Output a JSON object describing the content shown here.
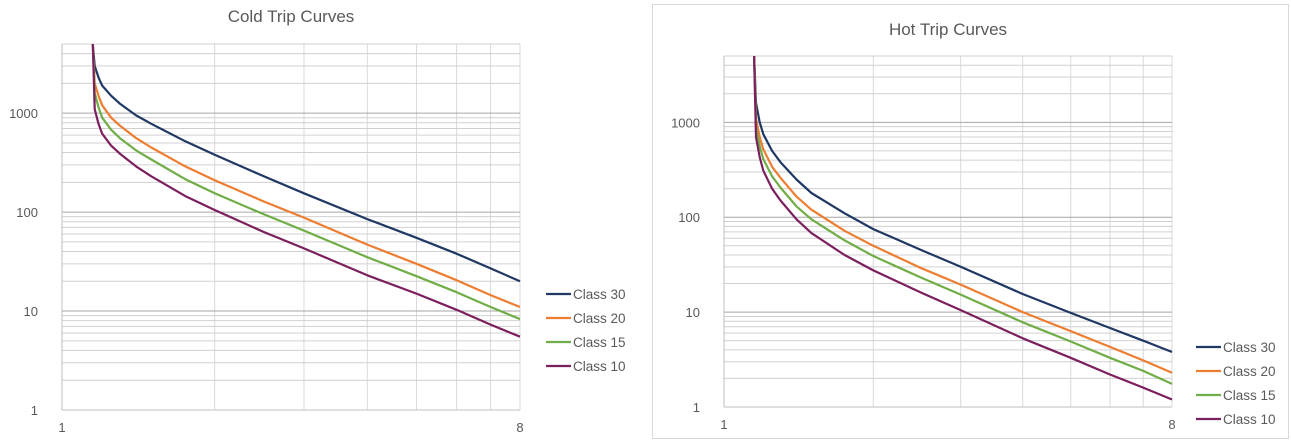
{
  "chart_data": [
    {
      "type": "line",
      "title": "Cold Trip Curves",
      "xlabel": "",
      "ylabel": "",
      "xscale": "log",
      "yscale": "log",
      "xlim": [
        1,
        8
      ],
      "ylim": [
        1,
        5000
      ],
      "x_tick_labels": [
        "1",
        "8"
      ],
      "y_tick_labels": [
        "1",
        "10",
        "100",
        "1000"
      ],
      "grid": true,
      "legend_position": "right",
      "series": [
        {
          "name": "Class 30",
          "color": "#1f3864",
          "x": [
            1.15,
            1.16,
            1.18,
            1.2,
            1.25,
            1.3,
            1.4,
            1.5,
            1.75,
            2,
            2.5,
            3,
            4,
            5,
            6,
            7,
            8
          ],
          "y": [
            5000,
            3000,
            2300,
            1900,
            1500,
            1250,
            950,
            780,
            520,
            380,
            230,
            155,
            85,
            55,
            38,
            27,
            20
          ]
        },
        {
          "name": "Class 20",
          "color": "#ed7d31",
          "x": [
            1.15,
            1.16,
            1.18,
            1.2,
            1.25,
            1.3,
            1.4,
            1.5,
            1.75,
            2,
            2.5,
            3,
            4,
            5,
            6,
            7,
            8
          ],
          "y": [
            5000,
            2000,
            1500,
            1200,
            900,
            750,
            560,
            450,
            290,
            210,
            128,
            88,
            47,
            30,
            20.5,
            14.5,
            11
          ]
        },
        {
          "name": "Class 15",
          "color": "#70ad47",
          "x": [
            1.15,
            1.16,
            1.18,
            1.2,
            1.25,
            1.3,
            1.4,
            1.5,
            1.75,
            2,
            2.5,
            3,
            4,
            5,
            6,
            7,
            8
          ],
          "y": [
            5000,
            1600,
            1150,
            900,
            680,
            560,
            420,
            340,
            215,
            155,
            95,
            65,
            35,
            22.5,
            15.5,
            11,
            8.3
          ]
        },
        {
          "name": "Class 10",
          "color": "#7b1f5e",
          "x": [
            1.15,
            1.16,
            1.18,
            1.2,
            1.25,
            1.3,
            1.4,
            1.5,
            1.75,
            2,
            2.5,
            3,
            4,
            5,
            6,
            7,
            8
          ],
          "y": [
            5000,
            1100,
            780,
            620,
            470,
            390,
            290,
            230,
            145,
            105,
            63,
            43,
            23,
            15,
            10.3,
            7.3,
            5.5
          ]
        }
      ]
    },
    {
      "type": "line",
      "title": "Hot Trip Curves",
      "xlabel": "",
      "ylabel": "",
      "xscale": "log",
      "yscale": "log",
      "xlim": [
        1,
        8
      ],
      "ylim": [
        1,
        5000
      ],
      "x_tick_labels": [
        "1",
        "8"
      ],
      "y_tick_labels": [
        "1",
        "10",
        "100",
        "1000"
      ],
      "grid": true,
      "legend_position": "right",
      "series": [
        {
          "name": "Class 30",
          "color": "#1f3864",
          "x": [
            1.15,
            1.16,
            1.18,
            1.2,
            1.25,
            1.3,
            1.4,
            1.5,
            1.75,
            2,
            2.5,
            3,
            4,
            5,
            6,
            7,
            8
          ],
          "y": [
            5000,
            1600,
            1000,
            750,
            500,
            380,
            250,
            180,
            110,
            75,
            45,
            30,
            15.5,
            9.8,
            6.8,
            5,
            3.8
          ]
        },
        {
          "name": "Class 20",
          "color": "#ed7d31",
          "x": [
            1.15,
            1.16,
            1.18,
            1.2,
            1.25,
            1.3,
            1.4,
            1.5,
            1.75,
            2,
            2.5,
            3,
            4,
            5,
            6,
            7,
            8
          ],
          "y": [
            5000,
            1100,
            700,
            520,
            340,
            260,
            165,
            120,
            72,
            50,
            29,
            19.5,
            10,
            6.3,
            4.3,
            3.1,
            2.3
          ]
        },
        {
          "name": "Class 15",
          "color": "#70ad47",
          "x": [
            1.15,
            1.16,
            1.18,
            1.2,
            1.25,
            1.3,
            1.4,
            1.5,
            1.75,
            2,
            2.5,
            3,
            4,
            5,
            6,
            7,
            8
          ],
          "y": [
            5000,
            900,
            560,
            410,
            270,
            205,
            130,
            95,
            57,
            39,
            23,
            15.3,
            7.8,
            4.9,
            3.3,
            2.4,
            1.75
          ]
        },
        {
          "name": "Class 10",
          "color": "#7b1f5e",
          "x": [
            1.15,
            1.16,
            1.18,
            1.2,
            1.25,
            1.3,
            1.4,
            1.5,
            1.75,
            2,
            2.5,
            3,
            4,
            5,
            6,
            7,
            8
          ],
          "y": [
            5000,
            700,
            430,
            310,
            200,
            150,
            95,
            68,
            40,
            27.5,
            16,
            10.5,
            5.3,
            3.3,
            2.2,
            1.6,
            1.2
          ]
        }
      ]
    }
  ]
}
